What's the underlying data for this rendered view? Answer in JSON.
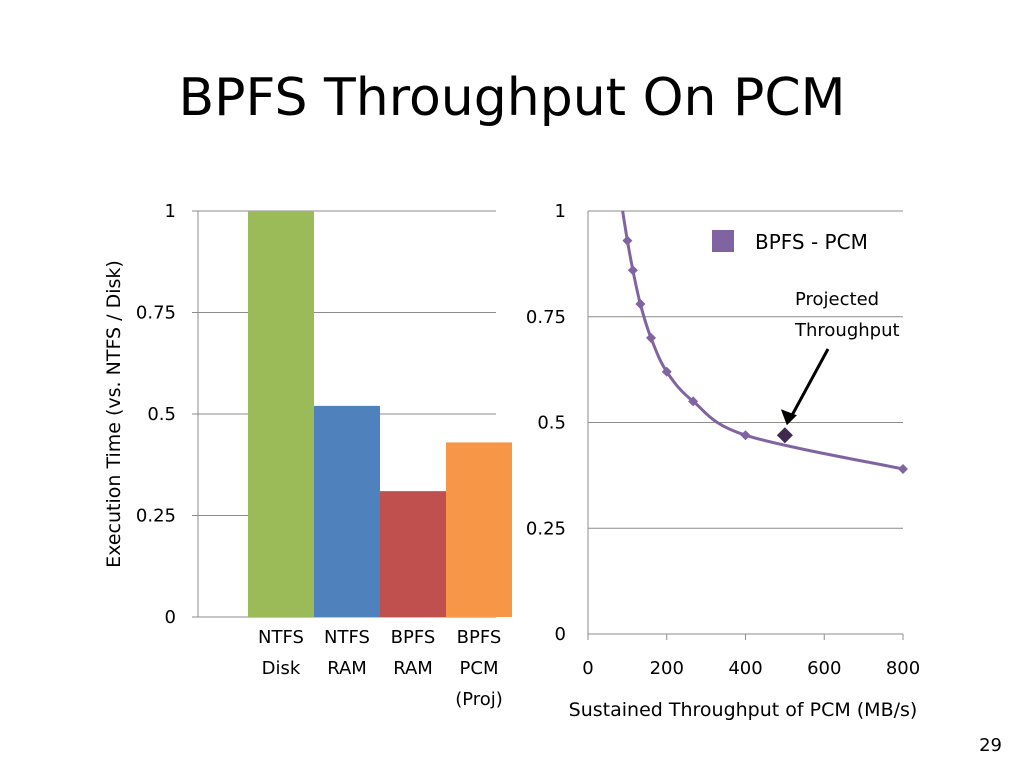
{
  "slide": {
    "title": "BPFS Throughput On PCM",
    "page_number": "29"
  },
  "chart_data": [
    {
      "type": "bar",
      "ylabel": "Execution Time (vs. NTFS / Disk)",
      "ylim": [
        0,
        1
      ],
      "yticks": [
        "0",
        "0.25",
        "0.5",
        "0.75",
        "1"
      ],
      "grid": true,
      "categories": [
        [
          "NTFS",
          "Disk"
        ],
        [
          "NTFS",
          "RAM"
        ],
        [
          "BPFS",
          "RAM"
        ],
        [
          "BPFS",
          "PCM",
          "(Proj)"
        ]
      ],
      "values": [
        1.0,
        0.52,
        0.31,
        0.43
      ],
      "colors": [
        "#9bbb59",
        "#4f81bd",
        "#c0504d",
        "#f79646"
      ]
    },
    {
      "type": "line",
      "xlabel": "Sustained Throughput of PCM (MB/s)",
      "xlim": [
        0,
        800
      ],
      "ylim": [
        0,
        1
      ],
      "xticks": [
        "0",
        "200",
        "400",
        "600",
        "800"
      ],
      "yticks": [
        "0",
        "0.25",
        "0.5",
        "0.75",
        "1"
      ],
      "grid": true,
      "legend_position": "top-right",
      "series": [
        {
          "name": "BPFS - PCM",
          "color": "#8064a2",
          "x": [
            100,
            114,
            133,
            160,
            200,
            267,
            400,
            800
          ],
          "y": [
            0.93,
            0.86,
            0.78,
            0.7,
            0.62,
            0.55,
            0.47,
            0.39
          ]
        }
      ],
      "curve_start": {
        "x": 88,
        "y": 1.0
      },
      "projected_point": {
        "x": 500,
        "y": 0.47
      },
      "annotation": [
        "Projected",
        "Throughput"
      ]
    }
  ]
}
